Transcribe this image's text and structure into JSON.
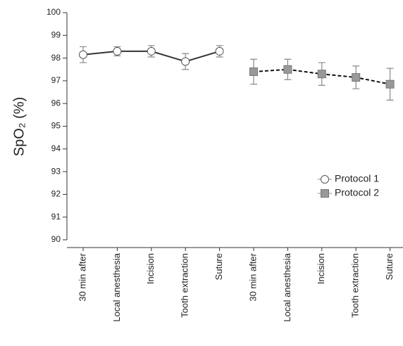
{
  "chart_data": {
    "type": "line",
    "ylabel": "SpO₂ (%)",
    "categories": [
      "30 min after",
      "Local anesthesia",
      "Incision",
      "Tooth extraction",
      "Suture",
      "30 min after",
      "Local anesthesia",
      "Incision",
      "Tooth extraction",
      "Suture"
    ],
    "series": [
      {
        "name": "Protocol 1",
        "color": "#ffffff",
        "line_color": "#333333",
        "marker": "circle",
        "linestyle": "solid",
        "values": [
          98.15,
          98.3,
          98.3,
          97.85,
          98.3,
          null,
          null,
          null,
          null,
          null
        ],
        "errors": [
          0.35,
          0.2,
          0.25,
          0.35,
          0.25,
          null,
          null,
          null,
          null,
          null
        ]
      },
      {
        "name": "Protocol 2",
        "color": "#999999",
        "line_color": "#111111",
        "marker": "square",
        "linestyle": "dashed",
        "values": [
          null,
          null,
          null,
          null,
          null,
          97.4,
          97.5,
          97.3,
          97.15,
          96.85
        ],
        "errors": [
          null,
          null,
          null,
          null,
          null,
          0.55,
          0.45,
          0.5,
          0.5,
          0.7
        ]
      }
    ],
    "ylim": [
      90,
      100
    ],
    "yticks": [
      90,
      91,
      92,
      93,
      94,
      95,
      96,
      97,
      98,
      99,
      100
    ],
    "grid": false,
    "legend": "right"
  }
}
